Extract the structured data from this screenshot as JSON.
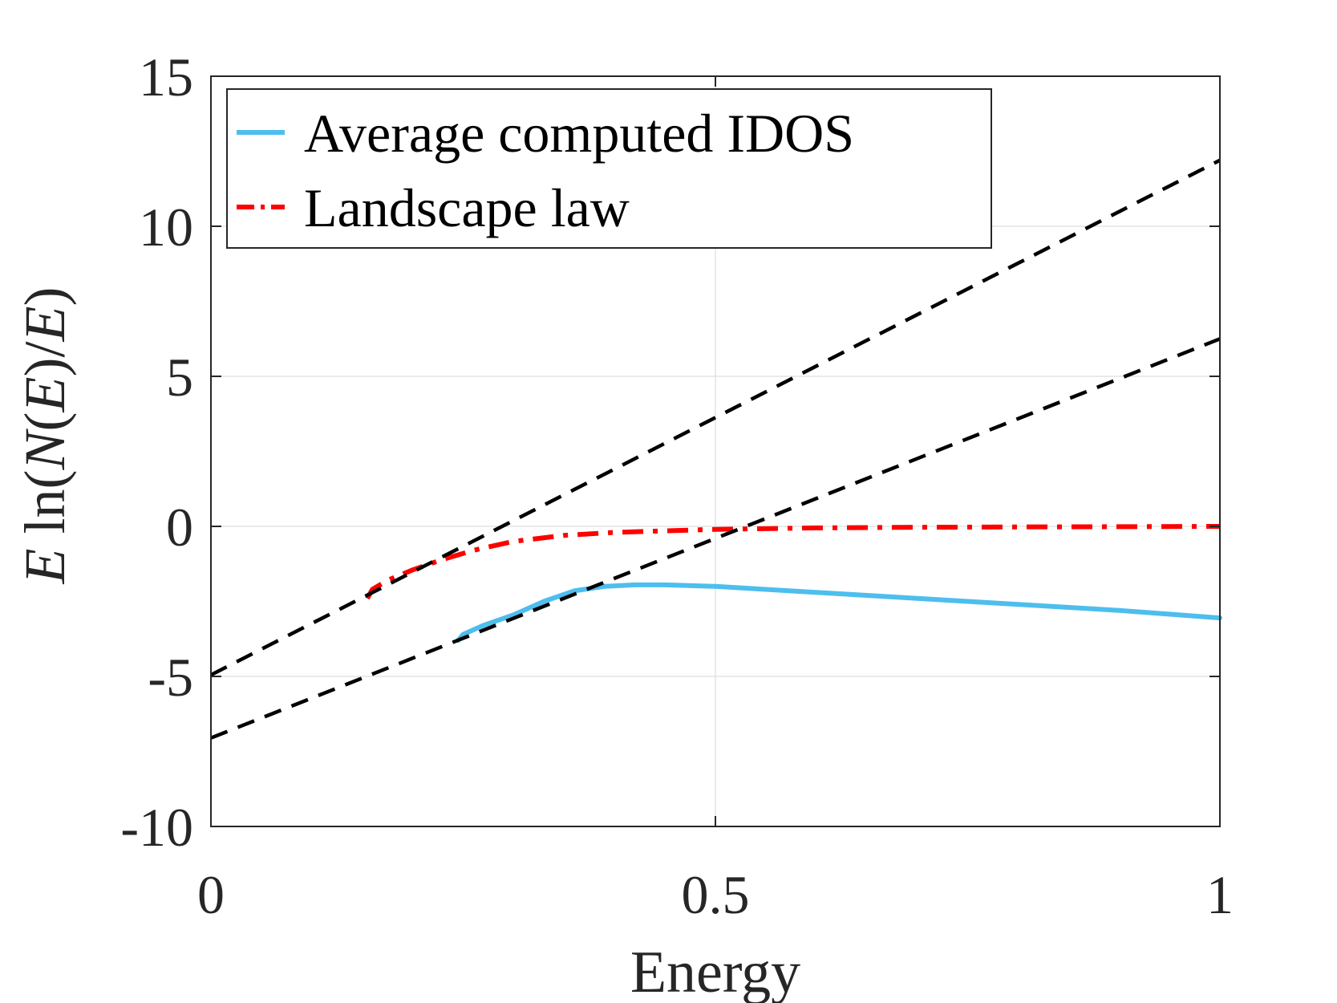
{
  "chart_data": {
    "type": "line",
    "title": "",
    "xlabel": "Energy",
    "ylabel_parts": [
      "E",
      " ln",
      "(",
      "N",
      "(",
      "E",
      ")",
      "/",
      "E",
      ")"
    ],
    "xlim": [
      0,
      1
    ],
    "ylim": [
      -10,
      15
    ],
    "xticks": [
      0,
      0.5,
      1
    ],
    "xtick_labels": [
      "0",
      "0.5",
      "1"
    ],
    "yticks": [
      -10,
      -5,
      0,
      5,
      10,
      15
    ],
    "ytick_labels": [
      "-10",
      "-5",
      "0",
      "5",
      "10",
      "15"
    ],
    "grid": true,
    "legend_position": "top-left",
    "series": [
      {
        "name": "Average computed IDOS",
        "color": "#4DBEEE",
        "style": "solid",
        "x": [
          0.245,
          0.25,
          0.27,
          0.3,
          0.33,
          0.36,
          0.39,
          0.42,
          0.45,
          0.5,
          0.6,
          0.7,
          0.8,
          0.9,
          1.0
        ],
        "y": [
          -3.8,
          -3.6,
          -3.3,
          -2.95,
          -2.5,
          -2.15,
          -2.0,
          -1.95,
          -1.95,
          -2.0,
          -2.2,
          -2.4,
          -2.6,
          -2.8,
          -3.05
        ]
      },
      {
        "name": "Landscape law",
        "color": "#FF0000",
        "style": "dashdot",
        "x": [
          0.155,
          0.16,
          0.175,
          0.2,
          0.23,
          0.26,
          0.3,
          0.35,
          0.4,
          0.45,
          0.5,
          0.6,
          0.7,
          0.8,
          0.9,
          1.0
        ],
        "y": [
          -2.4,
          -2.1,
          -1.8,
          -1.45,
          -1.1,
          -0.8,
          -0.5,
          -0.3,
          -0.2,
          -0.15,
          -0.1,
          -0.05,
          -0.03,
          -0.02,
          -0.01,
          0
        ]
      },
      {
        "name": "",
        "color": "#000000",
        "style": "dashed",
        "x": [
          0,
          1
        ],
        "y": [
          -4.95,
          12.2
        ]
      },
      {
        "name": "",
        "color": "#000000",
        "style": "dashed",
        "x": [
          0,
          1
        ],
        "y": [
          -7.05,
          6.25
        ]
      }
    ]
  }
}
